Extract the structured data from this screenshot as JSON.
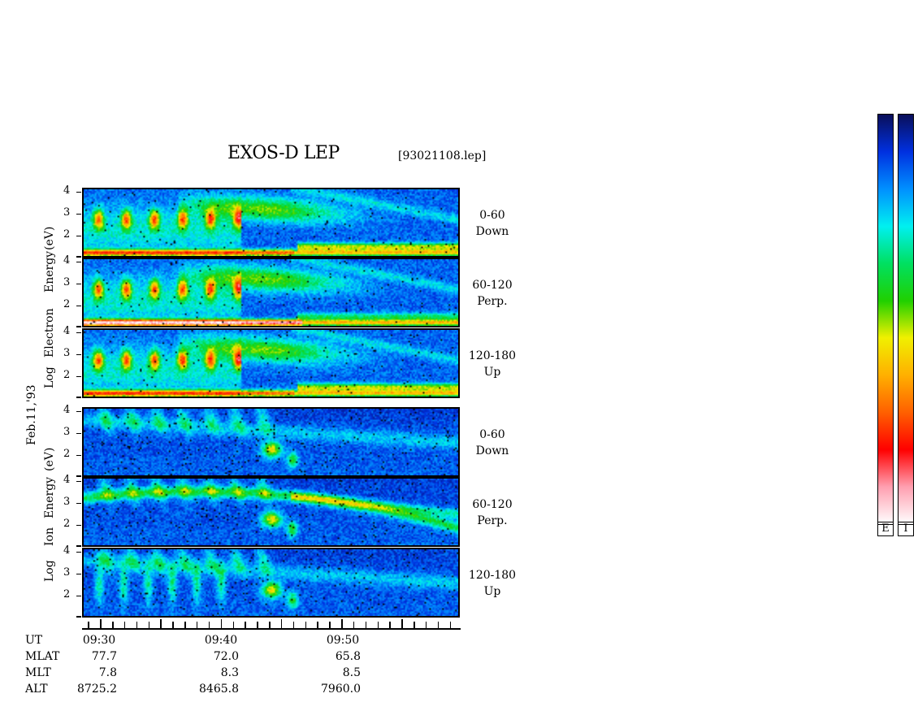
{
  "header": {
    "title": "EXOS-D LEP",
    "file": "[93021108.lep]"
  },
  "axes": {
    "electron_label_parts": [
      "Log",
      "Electron",
      "Energy",
      "(eV)"
    ],
    "ion_label_parts": [
      "Log",
      "Ion",
      "Energy",
      "(eV)"
    ],
    "date": "Feb.11,'93"
  },
  "chart_data": {
    "type": "heatmap",
    "panels": [
      {
        "species": "Electron",
        "angle": "0-60",
        "direction": "Down",
        "ylim": [
          1,
          4.2
        ],
        "yticks": [
          "4",
          "3",
          "2"
        ]
      },
      {
        "species": "Electron",
        "angle": "60-120",
        "direction": "Perp.",
        "ylim": [
          1,
          4.2
        ],
        "yticks": [
          "4",
          "3",
          "2"
        ]
      },
      {
        "species": "Electron",
        "angle": "120-180",
        "direction": "Up",
        "ylim": [
          1,
          4.2
        ],
        "yticks": [
          "4",
          "3",
          "2"
        ]
      },
      {
        "species": "Ion",
        "angle": "0-60",
        "direction": "Down",
        "ylim": [
          1,
          4.2
        ],
        "yticks": [
          "4",
          "3",
          "2"
        ]
      },
      {
        "species": "Ion",
        "angle": "60-120",
        "direction": "Perp.",
        "ylim": [
          1,
          4.2
        ],
        "yticks": [
          "4",
          "3",
          "2"
        ]
      },
      {
        "species": "Ion",
        "angle": "120-180",
        "direction": "Up",
        "ylim": [
          1,
          4.2
        ],
        "yticks": [
          "4",
          "3",
          "2"
        ]
      }
    ],
    "x_tick_labels": [
      "09:30",
      "09:40",
      "09:50"
    ],
    "x_ticks_minutes": [
      29,
      30,
      31,
      32,
      33,
      34,
      35,
      36,
      37,
      38,
      39,
      40,
      41,
      42,
      43,
      44,
      45,
      46,
      47,
      48,
      49,
      50,
      51,
      52,
      53,
      54,
      55,
      56,
      57,
      58,
      59
    ],
    "xlim_minutes": [
      28.5,
      59.9
    ],
    "ephemeris": {
      "rows": [
        {
          "name": "UT",
          "values": [
            "09:30",
            "09:40",
            "09:50"
          ]
        },
        {
          "name": "MLAT",
          "values": [
            "77.7",
            "72.0",
            "65.8"
          ]
        },
        {
          "name": "MLT",
          "values": [
            "7.8",
            "8.3",
            "8.5"
          ]
        },
        {
          "name": "ALT",
          "values": [
            "8725.2",
            "8465.8",
            "7960.0"
          ]
        }
      ]
    },
    "colorbars": [
      {
        "label": "E"
      },
      {
        "label": "I"
      }
    ],
    "colormap": [
      "#0a0f5a",
      "#0030e0",
      "#0090ff",
      "#00f0f0",
      "#00e060",
      "#20d000",
      "#f0f000",
      "#ffb000",
      "#ff6000",
      "#ff0000",
      "#ff9fb0",
      "#ffffff"
    ]
  }
}
